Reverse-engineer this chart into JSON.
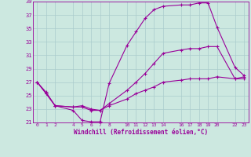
{
  "background_color": "#cce8e0",
  "line_color": "#990099",
  "grid_color": "#aacccc",
  "xlabel": "Windchill (Refroidissement éolien,°C)",
  "xlim": [
    -0.5,
    23.5
  ],
  "ylim": [
    21,
    39
  ],
  "xticks": [
    0,
    1,
    2,
    4,
    5,
    6,
    7,
    8,
    10,
    11,
    12,
    13,
    14,
    16,
    17,
    18,
    19,
    20,
    22,
    23
  ],
  "yticks": [
    21,
    23,
    25,
    27,
    29,
    31,
    33,
    35,
    37,
    39
  ],
  "line1_x": [
    0,
    1,
    2,
    4,
    5,
    6,
    7,
    8,
    10,
    11,
    12,
    13,
    14,
    16,
    17,
    18,
    19,
    20,
    22,
    23
  ],
  "line1_y": [
    27.0,
    25.3,
    23.5,
    22.8,
    21.3,
    21.1,
    21.1,
    26.8,
    32.5,
    34.5,
    36.5,
    37.8,
    38.3,
    38.5,
    38.5,
    38.8,
    38.8,
    35.2,
    29.2,
    28.0
  ],
  "line2_x": [
    0,
    1,
    2,
    4,
    5,
    6,
    7,
    8,
    10,
    11,
    12,
    13,
    14,
    16,
    17,
    18,
    19,
    20,
    22,
    23
  ],
  "line2_y": [
    27.0,
    25.5,
    23.5,
    23.3,
    23.3,
    22.8,
    22.8,
    23.8,
    25.8,
    27.0,
    28.3,
    29.8,
    31.3,
    31.8,
    32.0,
    32.0,
    32.3,
    32.3,
    27.5,
    27.8
  ],
  "line3_x": [
    0,
    1,
    2,
    4,
    5,
    6,
    7,
    8,
    10,
    11,
    12,
    13,
    14,
    16,
    17,
    18,
    19,
    20,
    22,
    23
  ],
  "line3_y": [
    27.0,
    25.3,
    23.5,
    23.3,
    23.5,
    23.0,
    22.8,
    23.5,
    24.5,
    25.3,
    25.8,
    26.3,
    27.0,
    27.3,
    27.5,
    27.5,
    27.5,
    27.8,
    27.5,
    27.5
  ]
}
